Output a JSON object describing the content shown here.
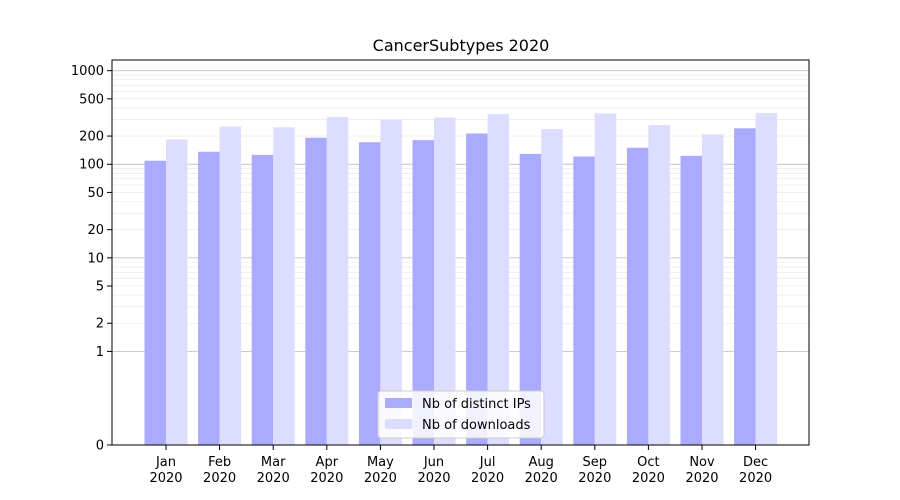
{
  "chart_data": {
    "type": "bar",
    "title": "CancerSubtypes 2020",
    "xlabel": "",
    "ylabel": "",
    "yscale": "symlog",
    "ylim": [
      0,
      1300
    ],
    "yticks": [
      0,
      1,
      2,
      5,
      10,
      20,
      50,
      100,
      200,
      500,
      1000
    ],
    "ytick_labels": [
      "0",
      "1",
      "2",
      "5",
      "10",
      "20",
      "50",
      "100",
      "200",
      "500",
      "1000"
    ],
    "grid": true,
    "legend_position": "bottom-center",
    "categories": [
      [
        "Jan",
        "2020"
      ],
      [
        "Feb",
        "2020"
      ],
      [
        "Mar",
        "2020"
      ],
      [
        "Apr",
        "2020"
      ],
      [
        "May",
        "2020"
      ],
      [
        "Jun",
        "2020"
      ],
      [
        "Jul",
        "2020"
      ],
      [
        "Aug",
        "2020"
      ],
      [
        "Sep",
        "2020"
      ],
      [
        "Oct",
        "2020"
      ],
      [
        "Nov",
        "2020"
      ],
      [
        "Dec",
        "2020"
      ]
    ],
    "series": [
      {
        "name": "Nb of distinct IPs",
        "color": "#aaaaff",
        "values": [
          109,
          136,
          126,
          192,
          172,
          181,
          213,
          129,
          121,
          150,
          123,
          242
        ]
      },
      {
        "name": "Nb of downloads",
        "color": "#ddddff",
        "values": [
          184,
          252,
          248,
          320,
          299,
          316,
          345,
          237,
          350,
          262,
          209,
          352
        ]
      }
    ]
  }
}
